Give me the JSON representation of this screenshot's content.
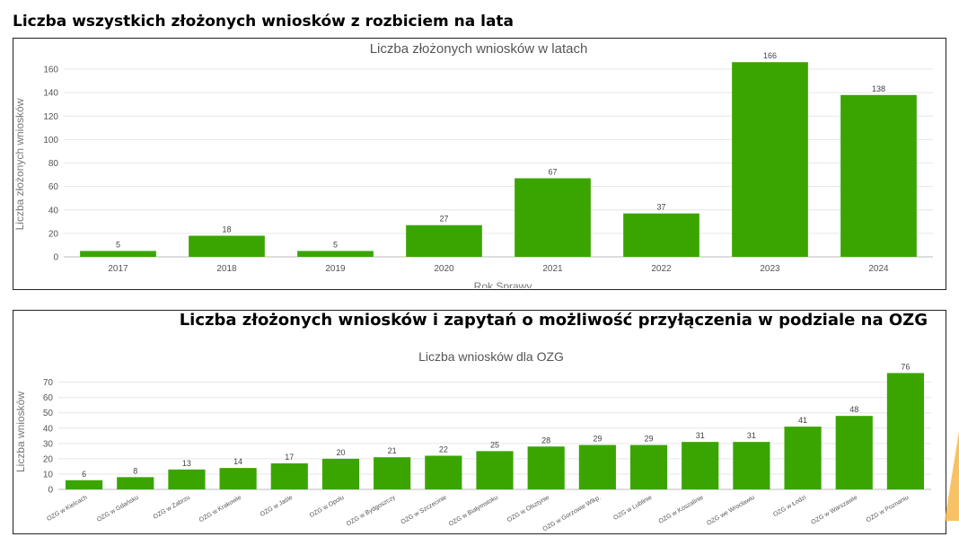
{
  "section1": {
    "heading": "Liczba wszystkich złożonych wniosków z rozbiciem na lata"
  },
  "section2": {
    "heading": "Liczba złożonych wniosków i zapytań o możliwość przyłączenia w podziale na OZG"
  },
  "colors": {
    "bar": "#3aa500",
    "grid": "#e6e6e6",
    "axis_text": "#555555",
    "title_text": "#555555"
  },
  "chart_data": [
    {
      "type": "bar",
      "title": "Liczba złożonych wniosków w latach",
      "xlabel": "Rok Sprawy",
      "ylabel": "Liczba złożonych wniosków",
      "categories": [
        "2017",
        "2018",
        "2019",
        "2020",
        "2021",
        "2022",
        "2023",
        "2024"
      ],
      "values": [
        5,
        18,
        5,
        27,
        67,
        37,
        166,
        138
      ],
      "ylim": [
        0,
        170
      ],
      "yticks": [
        0,
        20,
        40,
        60,
        80,
        100,
        120,
        140,
        160
      ],
      "grid": true
    },
    {
      "type": "bar",
      "title": "Liczba wniosków dla OZG",
      "xlabel": "",
      "ylabel": "Liczba wniosków",
      "categories": [
        "OZG w Kielcach",
        "OZG w Gdańsku",
        "OZG w Zabrzu",
        "OZG w Krakowie",
        "OZG w Jaśle",
        "OZG w Opolu",
        "OZG w Bydgoszczy",
        "OZG w Szczecinie",
        "OZG w Białymstoku",
        "OZG w Olsztynie",
        "OZG w Gorzowie Wlkp.",
        "OZG w Lublinie",
        "OZG w Koszalinie",
        "OZG we Wrocławiu",
        "OZG w Łodzi",
        "OZG w Warszawie",
        "OZG w Poznaniu"
      ],
      "values": [
        6,
        8,
        13,
        14,
        17,
        20,
        21,
        22,
        25,
        28,
        29,
        29,
        31,
        31,
        41,
        48,
        76
      ],
      "ylim": [
        0,
        78
      ],
      "yticks": [
        0,
        10,
        20,
        30,
        40,
        50,
        60,
        70
      ],
      "grid": true
    }
  ]
}
